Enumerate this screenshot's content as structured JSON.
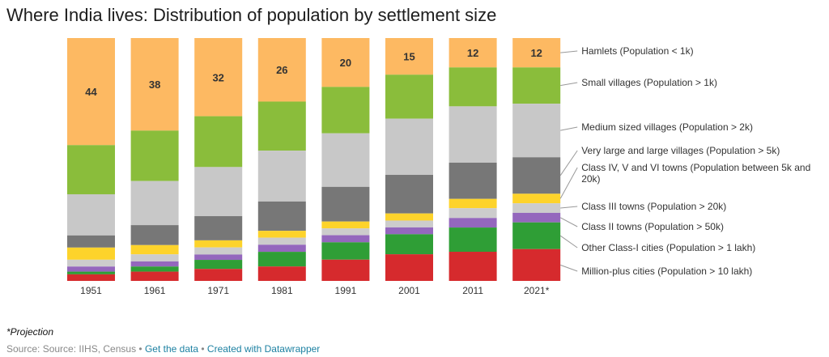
{
  "chart_data": {
    "type": "bar",
    "stacked": true,
    "title": "Where India lives: Distribution of population by settlement size",
    "categories": [
      "1951",
      "1961",
      "1971",
      "1981",
      "1991",
      "2001",
      "2011",
      "2021*"
    ],
    "ylim": [
      0,
      100
    ],
    "grid": false,
    "legend_placement": "right (direct labels)",
    "series": [
      {
        "name": "Hamlets (Population < 1k)",
        "color": "#fdb962",
        "values": [
          44,
          38,
          32,
          26,
          20,
          15,
          12,
          12
        ],
        "labels": [
          "44",
          "38",
          "32",
          "26",
          "20",
          "15",
          "12",
          "12"
        ]
      },
      {
        "name": "Small villages (Population > 1k)",
        "color": "#8abd3b",
        "values": [
          20.2,
          20.7,
          20.8,
          20.1,
          19,
          18,
          15.9,
          14.8
        ]
      },
      {
        "name": "Medium sized villages (Population > 2k)",
        "color": "#c8c8c8",
        "values": [
          16.9,
          18.1,
          20.1,
          20.8,
          21.9,
          23,
          23,
          21.9
        ]
      },
      {
        "name": "Very large and large villages (Population > 5k)",
        "color": "#777777",
        "values": [
          5,
          8.2,
          9.9,
          12,
          14.2,
          15.8,
          14.8,
          14.9
        ]
      },
      {
        "name": "Class IV, V and VI towns (Population between 5k and 20k)",
        "color": "#fdd32b",
        "values": [
          5,
          3.8,
          2.9,
          2.8,
          2.8,
          2.9,
          3.8,
          3.9
        ]
      },
      {
        "name": "Class III towns (Population > 20k)",
        "color": "#cccccc",
        "values": [
          2.8,
          2.9,
          2.9,
          2.9,
          2.8,
          2.8,
          4,
          3.9
        ]
      },
      {
        "name": "Class II towns (Population > 50k)",
        "color": "#9467bd",
        "values": [
          2.1,
          2.1,
          2.2,
          2.9,
          2.9,
          2.8,
          3.9,
          3.9
        ]
      },
      {
        "name": "Other Class-I cities (Population > 1 lakh)",
        "color": "#2f9e36",
        "values": [
          1.1,
          2.1,
          3.7,
          6,
          7.1,
          8.2,
          9.9,
          10.9
        ]
      },
      {
        "name": "Million-plus cities (Population > 10 lakh)",
        "color": "#d62a2d",
        "values": [
          2.7,
          3.8,
          4.9,
          5.9,
          8.7,
          10.9,
          11.9,
          13
        ]
      }
    ]
  },
  "footer": {
    "note": "*Projection",
    "source": "Source: Source: IIHS, Census",
    "separator": "•",
    "get_data": "Get the data",
    "created_with": "Created with Datawrapper"
  }
}
